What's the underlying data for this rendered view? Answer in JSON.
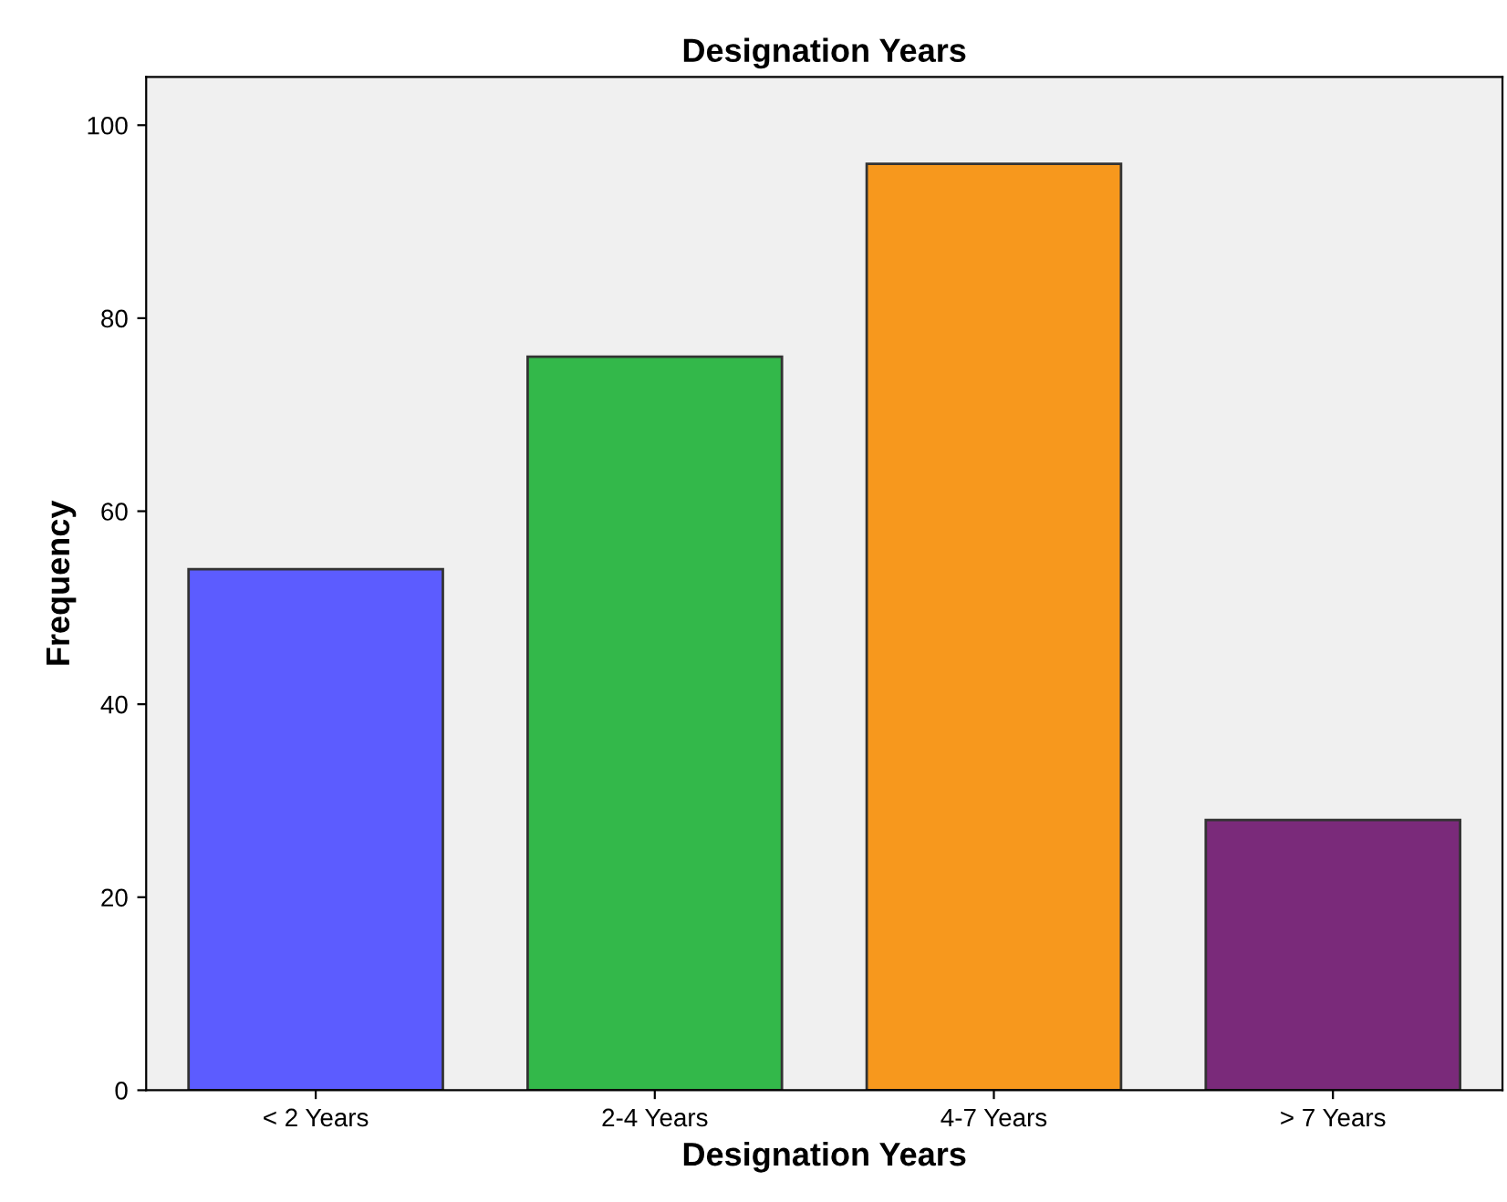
{
  "chart_data": {
    "type": "bar",
    "title": "Designation Years",
    "xlabel": "Designation Years",
    "ylabel": "Frequency",
    "categories": [
      "< 2 Years",
      "2-4 Years",
      "4-7 Years",
      "> 7 Years"
    ],
    "values": [
      54,
      76,
      96,
      28
    ],
    "colors": [
      "#5c5cff",
      "#33b84a",
      "#f7981d",
      "#7a2a7a"
    ],
    "ylim": [
      0,
      105
    ],
    "yticks": [
      0,
      20,
      40,
      60,
      80,
      100
    ],
    "grid": false,
    "legend": false
  }
}
